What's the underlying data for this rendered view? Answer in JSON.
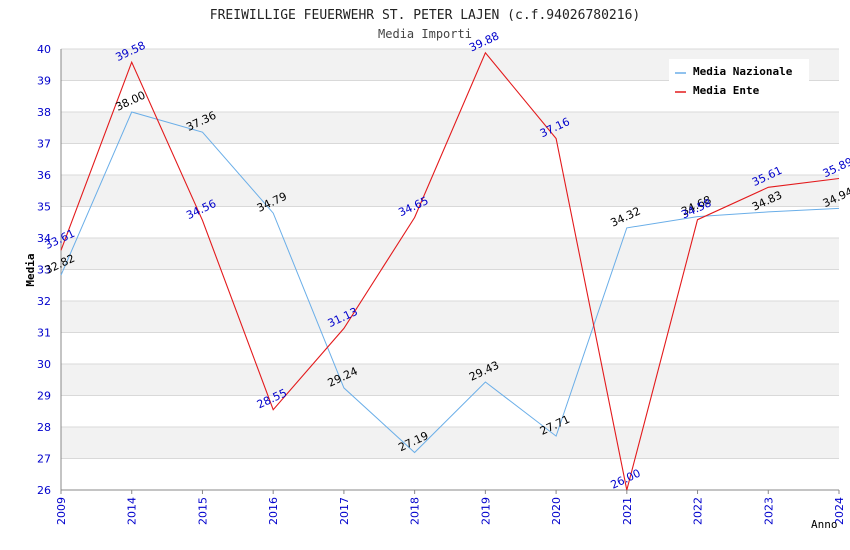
{
  "chart_data": {
    "type": "line",
    "title": "FREIWILLIGE FEUERWEHR ST. PETER LAJEN (c.f.94026780216)",
    "subtitle": "Media Importi",
    "xlabel": "Anno",
    "ylabel": "Media",
    "categories": [
      "2009",
      "2014",
      "2015",
      "2016",
      "2017",
      "2018",
      "2019",
      "2020",
      "2021",
      "2022",
      "2023",
      "2024"
    ],
    "ylim": [
      26,
      40
    ],
    "yticks": [
      "26",
      "27",
      "28",
      "29",
      "30",
      "31",
      "32",
      "33",
      "34",
      "35",
      "36",
      "37",
      "38",
      "39",
      "40"
    ],
    "legend_position": "top-right",
    "series": [
      {
        "name": "Media Nazionale",
        "color": "#6aaee8",
        "label_color": "#000000",
        "values": [
          32.82,
          38.0,
          37.36,
          34.79,
          29.24,
          27.19,
          29.43,
          27.71,
          34.32,
          34.68,
          34.83,
          34.94
        ],
        "labels": [
          "32.82",
          "38.00",
          "37.36",
          "34.79",
          "29.24",
          "27.19",
          "29.43",
          "27.71",
          "34.32",
          "34.68",
          "34.83",
          "34.94"
        ]
      },
      {
        "name": "Media Ente",
        "color": "#e31a1c",
        "label_color": "#0000cc",
        "values": [
          33.61,
          39.58,
          34.56,
          28.55,
          31.13,
          34.65,
          39.88,
          37.16,
          26.0,
          34.58,
          35.61,
          35.89
        ],
        "labels": [
          "33.61",
          "39.58",
          "34.56",
          "28.55",
          "31.13",
          "34.65",
          "39.88",
          "37.16",
          "26.00",
          "34.58",
          "35.61",
          "35.89"
        ]
      }
    ],
    "colors": {
      "band": "#f2f2f2",
      "grid": "#d9d9d9",
      "tick_text": "#0000cc",
      "title_text": "#222222",
      "axis": "#888888"
    }
  }
}
